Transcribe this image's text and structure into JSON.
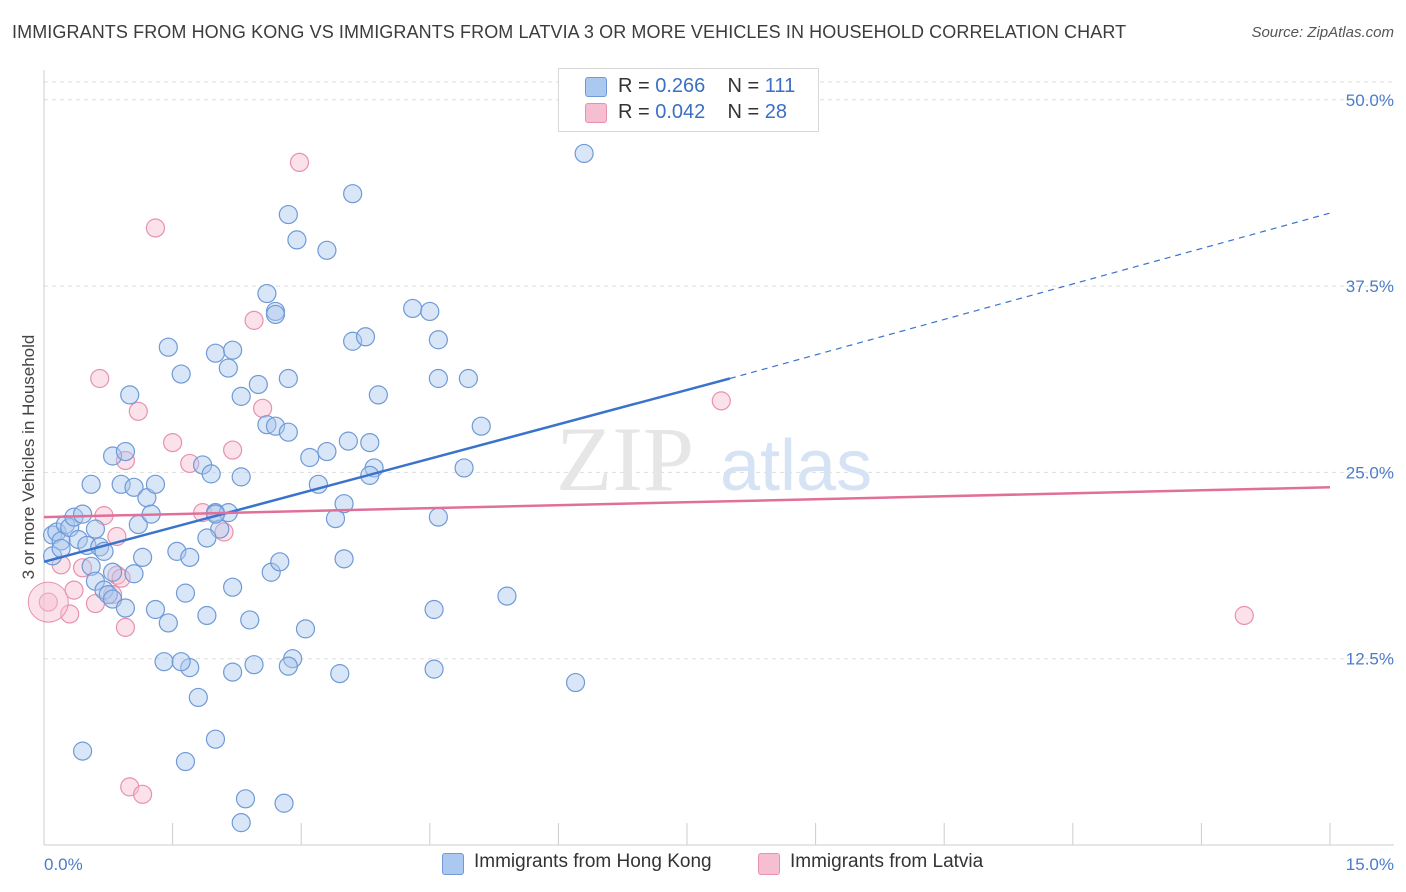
{
  "title": "IMMIGRANTS FROM HONG KONG VS IMMIGRANTS FROM LATVIA 3 OR MORE VEHICLES IN HOUSEHOLD CORRELATION CHART",
  "source": "Source: ZipAtlas.com",
  "watermark": {
    "zip": "ZIP",
    "atlas": "atlas"
  },
  "legend": {
    "row1": {
      "r_label": "R =",
      "r_value": "0.266",
      "n_label": "N =",
      "n_value": "111"
    },
    "row2": {
      "r_label": "R =",
      "r_value": "0.042",
      "n_label": "N =",
      "n_value": "28"
    }
  },
  "chart_data": {
    "type": "scatter",
    "title": "IMMIGRANTS FROM HONG KONG VS IMMIGRANTS FROM LATVIA 3 OR MORE VEHICLES IN HOUSEHOLD CORRELATION CHART",
    "xlabel": "",
    "ylabel": "3 or more Vehicles in Household",
    "xlim": [
      0,
      15
    ],
    "ylim": [
      0,
      52
    ],
    "x_tick_labels": {
      "min": "0.0%",
      "max": "15.0%"
    },
    "y_ticks": [
      12.5,
      25.0,
      37.5,
      50.0
    ],
    "y_tick_labels": [
      "12.5%",
      "25.0%",
      "37.5%",
      "50.0%"
    ],
    "legend_placement": "top-center",
    "colors": {
      "hong_kong_fill": "#aac8f0",
      "hong_kong_stroke": "#6f9ad6",
      "hong_kong_line": "#3a73cc",
      "latvia_fill": "#f6bfd1",
      "latvia_stroke": "#e891ae",
      "latvia_line": "#e0709a",
      "grid": "#dddddd",
      "axis": "#cccccc"
    },
    "series": [
      {
        "name": "Immigrants from Hong Kong",
        "r": 0.266,
        "n": 111,
        "trend": {
          "x0": 0.0,
          "y0": 19.0,
          "x1": 8.0,
          "y1": 31.3,
          "dash_to_x": 15.0,
          "dash_to_y": 42.4
        },
        "points": [
          [
            0.1,
            20.8
          ],
          [
            0.15,
            21.0
          ],
          [
            0.2,
            20.4
          ],
          [
            0.25,
            21.5
          ],
          [
            0.3,
            21.3
          ],
          [
            0.35,
            22.0
          ],
          [
            0.1,
            19.4
          ],
          [
            0.2,
            19.9
          ],
          [
            0.4,
            20.5
          ],
          [
            0.5,
            20.1
          ],
          [
            0.45,
            22.2
          ],
          [
            0.6,
            21.2
          ],
          [
            0.65,
            20.0
          ],
          [
            0.7,
            19.7
          ],
          [
            0.55,
            24.2
          ],
          [
            0.8,
            26.1
          ],
          [
            0.9,
            24.2
          ],
          [
            0.95,
            26.4
          ],
          [
            1.0,
            30.2
          ],
          [
            1.05,
            24.0
          ],
          [
            1.1,
            21.5
          ],
          [
            1.2,
            23.3
          ],
          [
            1.25,
            22.2
          ],
          [
            1.3,
            24.2
          ],
          [
            1.15,
            19.3
          ],
          [
            1.05,
            18.2
          ],
          [
            0.8,
            18.3
          ],
          [
            0.55,
            18.7
          ],
          [
            0.6,
            17.7
          ],
          [
            0.7,
            17.1
          ],
          [
            0.75,
            16.8
          ],
          [
            0.8,
            16.5
          ],
          [
            0.95,
            15.9
          ],
          [
            1.3,
            15.8
          ],
          [
            1.45,
            14.9
          ],
          [
            1.55,
            19.7
          ],
          [
            1.7,
            19.3
          ],
          [
            1.65,
            16.9
          ],
          [
            1.9,
            15.4
          ],
          [
            1.7,
            11.9
          ],
          [
            1.4,
            12.3
          ],
          [
            1.6,
            12.3
          ],
          [
            2.0,
            22.3
          ],
          [
            2.05,
            21.2
          ],
          [
            2.15,
            22.3
          ],
          [
            1.9,
            20.6
          ],
          [
            1.85,
            25.5
          ],
          [
            1.95,
            24.9
          ],
          [
            2.3,
            24.7
          ],
          [
            2.0,
            22.2
          ],
          [
            2.2,
            17.3
          ],
          [
            2.4,
            15.1
          ],
          [
            2.65,
            18.3
          ],
          [
            2.75,
            19.0
          ],
          [
            2.45,
            12.1
          ],
          [
            2.2,
            11.6
          ],
          [
            1.8,
            9.9
          ],
          [
            2.0,
            7.1
          ],
          [
            1.65,
            5.6
          ],
          [
            2.35,
            3.1
          ],
          [
            2.3,
            1.5
          ],
          [
            2.8,
            2.8
          ],
          [
            2.9,
            12.5
          ],
          [
            2.85,
            12.0
          ],
          [
            3.05,
            14.5
          ],
          [
            3.45,
            11.5
          ],
          [
            3.5,
            19.2
          ],
          [
            3.4,
            21.9
          ],
          [
            3.5,
            22.9
          ],
          [
            3.2,
            24.2
          ],
          [
            3.1,
            26.0
          ],
          [
            3.3,
            26.4
          ],
          [
            3.55,
            27.1
          ],
          [
            3.8,
            27.0
          ],
          [
            3.85,
            25.3
          ],
          [
            3.8,
            24.8
          ],
          [
            3.9,
            30.2
          ],
          [
            3.6,
            33.8
          ],
          [
            3.75,
            34.1
          ],
          [
            4.3,
            36.0
          ],
          [
            4.5,
            35.8
          ],
          [
            4.6,
            33.9
          ],
          [
            4.6,
            31.3
          ],
          [
            4.95,
            31.3
          ],
          [
            5.1,
            28.1
          ],
          [
            4.9,
            25.3
          ],
          [
            4.6,
            22.0
          ],
          [
            4.55,
            15.8
          ],
          [
            4.55,
            11.8
          ],
          [
            5.4,
            16.7
          ],
          [
            6.2,
            10.9
          ],
          [
            6.3,
            46.4
          ],
          [
            3.6,
            43.7
          ],
          [
            3.3,
            39.9
          ],
          [
            2.85,
            42.3
          ],
          [
            2.95,
            40.6
          ],
          [
            2.6,
            37.0
          ],
          [
            2.7,
            35.8
          ],
          [
            2.7,
            35.6
          ],
          [
            2.85,
            31.3
          ],
          [
            2.5,
            30.9
          ],
          [
            2.3,
            30.1
          ],
          [
            2.6,
            28.2
          ],
          [
            2.7,
            28.1
          ],
          [
            2.85,
            27.7
          ],
          [
            1.45,
            33.4
          ],
          [
            1.6,
            31.6
          ],
          [
            2.0,
            33.0
          ],
          [
            2.2,
            33.2
          ],
          [
            2.15,
            32.0
          ],
          [
            0.45,
            6.3
          ]
        ]
      },
      {
        "name": "Immigrants from Latvia",
        "r": 0.042,
        "n": 28,
        "trend": {
          "x0": 0.0,
          "y0": 22.0,
          "x1": 15.0,
          "y1": 24.0
        },
        "points": [
          [
            0.05,
            16.3
          ],
          [
            0.2,
            18.8
          ],
          [
            0.3,
            15.5
          ],
          [
            0.35,
            17.1
          ],
          [
            0.45,
            18.6
          ],
          [
            0.6,
            16.2
          ],
          [
            0.7,
            22.1
          ],
          [
            0.8,
            16.8
          ],
          [
            0.85,
            18.1
          ],
          [
            0.9,
            17.9
          ],
          [
            0.95,
            14.6
          ],
          [
            0.85,
            20.7
          ],
          [
            0.95,
            25.8
          ],
          [
            1.1,
            29.1
          ],
          [
            0.65,
            31.3
          ],
          [
            1.5,
            27.0
          ],
          [
            1.7,
            25.6
          ],
          [
            1.85,
            22.3
          ],
          [
            2.1,
            21.0
          ],
          [
            2.2,
            26.5
          ],
          [
            2.45,
            35.2
          ],
          [
            2.55,
            29.3
          ],
          [
            2.98,
            45.8
          ],
          [
            1.3,
            41.4
          ],
          [
            1.0,
            3.9
          ],
          [
            1.15,
            3.4
          ],
          [
            7.9,
            29.8
          ],
          [
            14.0,
            15.4
          ]
        ]
      }
    ]
  },
  "bottom_legend": {
    "item1": "Immigrants from Hong Kong",
    "item2": "Immigrants from Latvia"
  }
}
